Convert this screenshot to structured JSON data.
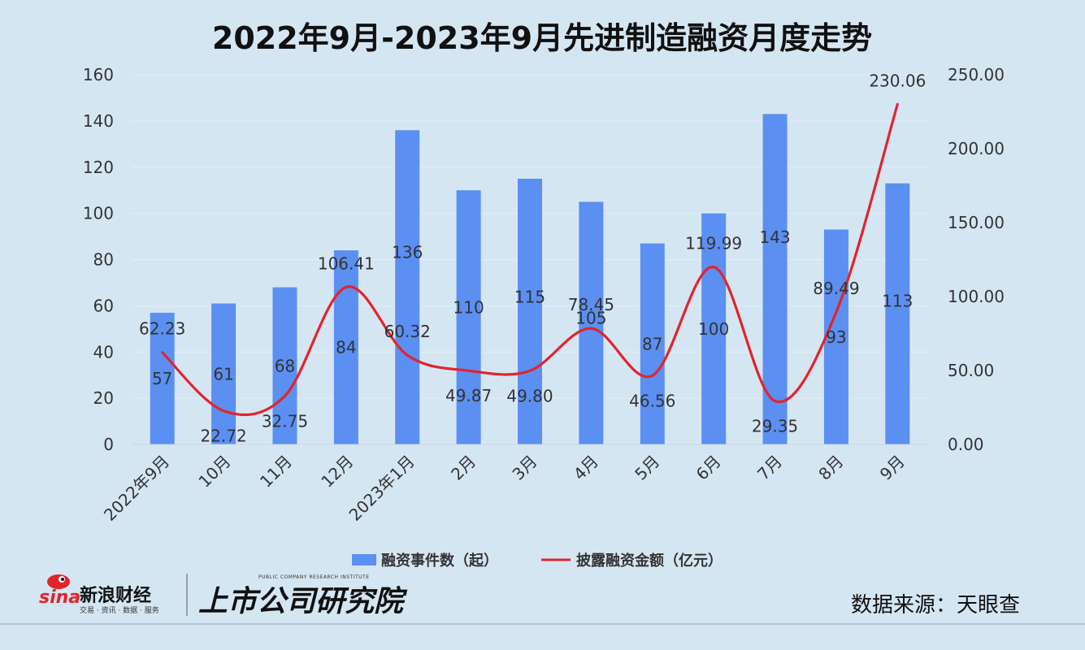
{
  "title": "2022年9月-2023年9月先进制造融资月度走势",
  "source": "数据来源：天眼查",
  "branding": {
    "sina_logo_text": "sina",
    "sina_name": "新浪财经",
    "sina_services": "交易 · 资讯 · 数据 · 服务",
    "institute_name": "上市公司研究院",
    "institute_en": "PUBLIC COMPANY RESEARCH INSTITUTE"
  },
  "colors": {
    "background": "#d5e6f3",
    "bar": "#5b8ff2",
    "line": "#e2242c",
    "grid": "#e4edf5"
  },
  "chart_data": {
    "type": "bar+line",
    "categories": [
      "2022年9月",
      "10月",
      "11月",
      "12月",
      "2023年1月",
      "2月",
      "3月",
      "4月",
      "5月",
      "6月",
      "7月",
      "8月",
      "9月"
    ],
    "series": [
      {
        "name": "融资事件数（起）",
        "type": "bar",
        "axis": "left",
        "values": [
          57,
          61,
          68,
          84,
          136,
          110,
          115,
          105,
          87,
          100,
          143,
          93,
          113
        ],
        "labels": [
          "57",
          "61",
          "68",
          "84",
          "136",
          "110",
          "115",
          "105",
          "87",
          "100",
          "143",
          "93",
          "113"
        ]
      },
      {
        "name": "披露融资金额（亿元）",
        "type": "line",
        "axis": "right",
        "smooth": true,
        "values": [
          62.23,
          22.72,
          32.75,
          106.41,
          60.32,
          49.87,
          49.8,
          78.45,
          46.56,
          119.99,
          29.35,
          89.49,
          230.06
        ],
        "labels": [
          "62.23",
          "22.72",
          "32.75",
          "106.41",
          "60.32",
          "49.87",
          "49.80",
          "78.45",
          "46.56",
          "119.99",
          "29.35",
          "89.49",
          "230.06"
        ]
      }
    ],
    "y_left": {
      "min": 0,
      "max": 160,
      "ticks": [
        "0",
        "20",
        "40",
        "60",
        "80",
        "100",
        "120",
        "140",
        "160"
      ]
    },
    "y_right": {
      "min": 0,
      "max": 250,
      "ticks": [
        "0.00",
        "50.00",
        "100.00",
        "150.00",
        "200.00",
        "250.00"
      ]
    },
    "grid": true,
    "legend_position": "bottom"
  }
}
